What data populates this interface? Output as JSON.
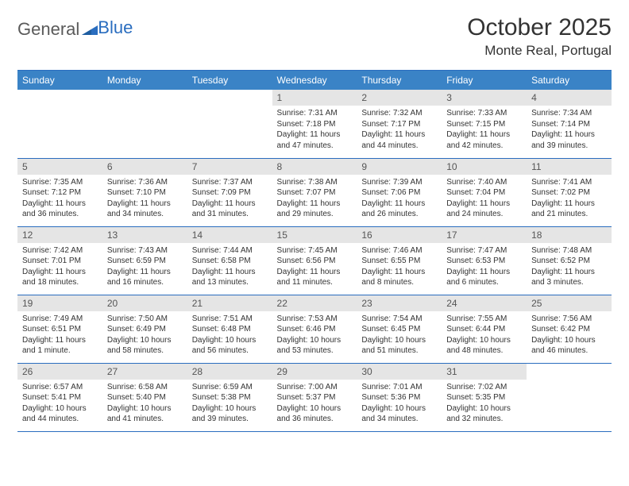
{
  "brand": {
    "name_part1": "General",
    "name_part2": "Blue"
  },
  "title": "October 2025",
  "location": "Monte Real, Portugal",
  "colors": {
    "header_bg": "#3a83c6",
    "rule": "#2a6dbf",
    "daynum_bg": "#e5e5e5",
    "text": "#333333",
    "brand_grey": "#5a5a5a",
    "brand_blue": "#2a6dbf"
  },
  "weekdays": [
    "Sunday",
    "Monday",
    "Tuesday",
    "Wednesday",
    "Thursday",
    "Friday",
    "Saturday"
  ],
  "weeks": [
    [
      {
        "n": "",
        "sr": "",
        "ss": "",
        "dl": ""
      },
      {
        "n": "",
        "sr": "",
        "ss": "",
        "dl": ""
      },
      {
        "n": "",
        "sr": "",
        "ss": "",
        "dl": ""
      },
      {
        "n": "1",
        "sr": "Sunrise: 7:31 AM",
        "ss": "Sunset: 7:18 PM",
        "dl": "Daylight: 11 hours and 47 minutes."
      },
      {
        "n": "2",
        "sr": "Sunrise: 7:32 AM",
        "ss": "Sunset: 7:17 PM",
        "dl": "Daylight: 11 hours and 44 minutes."
      },
      {
        "n": "3",
        "sr": "Sunrise: 7:33 AM",
        "ss": "Sunset: 7:15 PM",
        "dl": "Daylight: 11 hours and 42 minutes."
      },
      {
        "n": "4",
        "sr": "Sunrise: 7:34 AM",
        "ss": "Sunset: 7:14 PM",
        "dl": "Daylight: 11 hours and 39 minutes."
      }
    ],
    [
      {
        "n": "5",
        "sr": "Sunrise: 7:35 AM",
        "ss": "Sunset: 7:12 PM",
        "dl": "Daylight: 11 hours and 36 minutes."
      },
      {
        "n": "6",
        "sr": "Sunrise: 7:36 AM",
        "ss": "Sunset: 7:10 PM",
        "dl": "Daylight: 11 hours and 34 minutes."
      },
      {
        "n": "7",
        "sr": "Sunrise: 7:37 AM",
        "ss": "Sunset: 7:09 PM",
        "dl": "Daylight: 11 hours and 31 minutes."
      },
      {
        "n": "8",
        "sr": "Sunrise: 7:38 AM",
        "ss": "Sunset: 7:07 PM",
        "dl": "Daylight: 11 hours and 29 minutes."
      },
      {
        "n": "9",
        "sr": "Sunrise: 7:39 AM",
        "ss": "Sunset: 7:06 PM",
        "dl": "Daylight: 11 hours and 26 minutes."
      },
      {
        "n": "10",
        "sr": "Sunrise: 7:40 AM",
        "ss": "Sunset: 7:04 PM",
        "dl": "Daylight: 11 hours and 24 minutes."
      },
      {
        "n": "11",
        "sr": "Sunrise: 7:41 AM",
        "ss": "Sunset: 7:02 PM",
        "dl": "Daylight: 11 hours and 21 minutes."
      }
    ],
    [
      {
        "n": "12",
        "sr": "Sunrise: 7:42 AM",
        "ss": "Sunset: 7:01 PM",
        "dl": "Daylight: 11 hours and 18 minutes."
      },
      {
        "n": "13",
        "sr": "Sunrise: 7:43 AM",
        "ss": "Sunset: 6:59 PM",
        "dl": "Daylight: 11 hours and 16 minutes."
      },
      {
        "n": "14",
        "sr": "Sunrise: 7:44 AM",
        "ss": "Sunset: 6:58 PM",
        "dl": "Daylight: 11 hours and 13 minutes."
      },
      {
        "n": "15",
        "sr": "Sunrise: 7:45 AM",
        "ss": "Sunset: 6:56 PM",
        "dl": "Daylight: 11 hours and 11 minutes."
      },
      {
        "n": "16",
        "sr": "Sunrise: 7:46 AM",
        "ss": "Sunset: 6:55 PM",
        "dl": "Daylight: 11 hours and 8 minutes."
      },
      {
        "n": "17",
        "sr": "Sunrise: 7:47 AM",
        "ss": "Sunset: 6:53 PM",
        "dl": "Daylight: 11 hours and 6 minutes."
      },
      {
        "n": "18",
        "sr": "Sunrise: 7:48 AM",
        "ss": "Sunset: 6:52 PM",
        "dl": "Daylight: 11 hours and 3 minutes."
      }
    ],
    [
      {
        "n": "19",
        "sr": "Sunrise: 7:49 AM",
        "ss": "Sunset: 6:51 PM",
        "dl": "Daylight: 11 hours and 1 minute."
      },
      {
        "n": "20",
        "sr": "Sunrise: 7:50 AM",
        "ss": "Sunset: 6:49 PM",
        "dl": "Daylight: 10 hours and 58 minutes."
      },
      {
        "n": "21",
        "sr": "Sunrise: 7:51 AM",
        "ss": "Sunset: 6:48 PM",
        "dl": "Daylight: 10 hours and 56 minutes."
      },
      {
        "n": "22",
        "sr": "Sunrise: 7:53 AM",
        "ss": "Sunset: 6:46 PM",
        "dl": "Daylight: 10 hours and 53 minutes."
      },
      {
        "n": "23",
        "sr": "Sunrise: 7:54 AM",
        "ss": "Sunset: 6:45 PM",
        "dl": "Daylight: 10 hours and 51 minutes."
      },
      {
        "n": "24",
        "sr": "Sunrise: 7:55 AM",
        "ss": "Sunset: 6:44 PM",
        "dl": "Daylight: 10 hours and 48 minutes."
      },
      {
        "n": "25",
        "sr": "Sunrise: 7:56 AM",
        "ss": "Sunset: 6:42 PM",
        "dl": "Daylight: 10 hours and 46 minutes."
      }
    ],
    [
      {
        "n": "26",
        "sr": "Sunrise: 6:57 AM",
        "ss": "Sunset: 5:41 PM",
        "dl": "Daylight: 10 hours and 44 minutes."
      },
      {
        "n": "27",
        "sr": "Sunrise: 6:58 AM",
        "ss": "Sunset: 5:40 PM",
        "dl": "Daylight: 10 hours and 41 minutes."
      },
      {
        "n": "28",
        "sr": "Sunrise: 6:59 AM",
        "ss": "Sunset: 5:38 PM",
        "dl": "Daylight: 10 hours and 39 minutes."
      },
      {
        "n": "29",
        "sr": "Sunrise: 7:00 AM",
        "ss": "Sunset: 5:37 PM",
        "dl": "Daylight: 10 hours and 36 minutes."
      },
      {
        "n": "30",
        "sr": "Sunrise: 7:01 AM",
        "ss": "Sunset: 5:36 PM",
        "dl": "Daylight: 10 hours and 34 minutes."
      },
      {
        "n": "31",
        "sr": "Sunrise: 7:02 AM",
        "ss": "Sunset: 5:35 PM",
        "dl": "Daylight: 10 hours and 32 minutes."
      },
      {
        "n": "",
        "sr": "",
        "ss": "",
        "dl": ""
      }
    ]
  ]
}
